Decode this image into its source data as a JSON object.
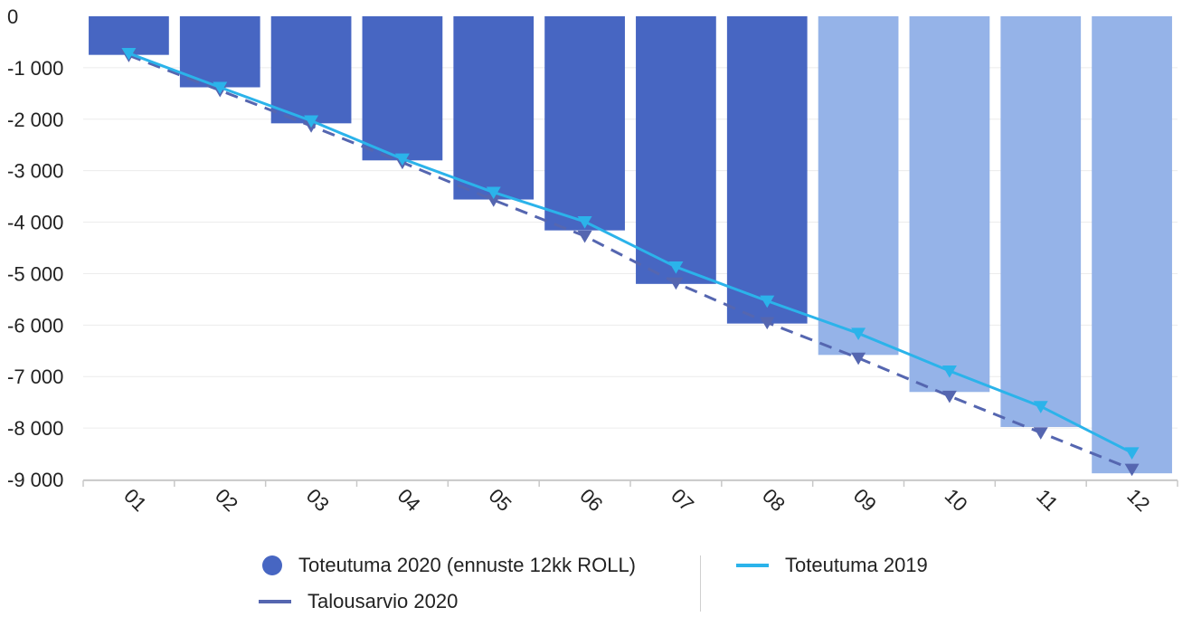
{
  "chart_data": {
    "type": "bar",
    "categories": [
      "01",
      "02",
      "03",
      "04",
      "05",
      "06",
      "07",
      "08",
      "09",
      "10",
      "11",
      "12"
    ],
    "series": [
      {
        "name": "Toteutuma 2020 (ennuste 12kk ROLL)",
        "type": "bar",
        "values": [
          -750,
          -1380,
          -2080,
          -2800,
          -3560,
          -4160,
          -5200,
          -5970,
          -6580,
          -7300,
          -7980,
          -8880
        ],
        "actual_months": 8,
        "color": "#4766c2",
        "forecast_color": "#95b3e8"
      },
      {
        "name": "Toteutuma 2019",
        "type": "line",
        "values": [
          -720,
          -1380,
          -2030,
          -2770,
          -3420,
          -3990,
          -4870,
          -5530,
          -6160,
          -6890,
          -7580,
          -8480
        ],
        "color": "#2bb3ea"
      },
      {
        "name": "Talousarvio 2020",
        "type": "line",
        "dashed": true,
        "values": [
          -760,
          -1440,
          -2130,
          -2840,
          -3570,
          -4270,
          -5180,
          -5950,
          -6640,
          -7380,
          -8090,
          -8800
        ],
        "color": "#5566b0"
      }
    ],
    "yticks": [
      "0",
      "-1 000",
      "-2 000",
      "-3 000",
      "-4 000",
      "-5 000",
      "-6 000",
      "-7 000",
      "-8 000",
      "-9 000"
    ],
    "ylim": [
      -9000,
      0
    ],
    "grid": true,
    "legend_position": "bottom"
  },
  "legend": {
    "item1": "Toteutuma 2020 (ennuste 12kk ROLL)",
    "item2": "Toteutuma 2019",
    "item3": "Talousarvio 2020"
  }
}
